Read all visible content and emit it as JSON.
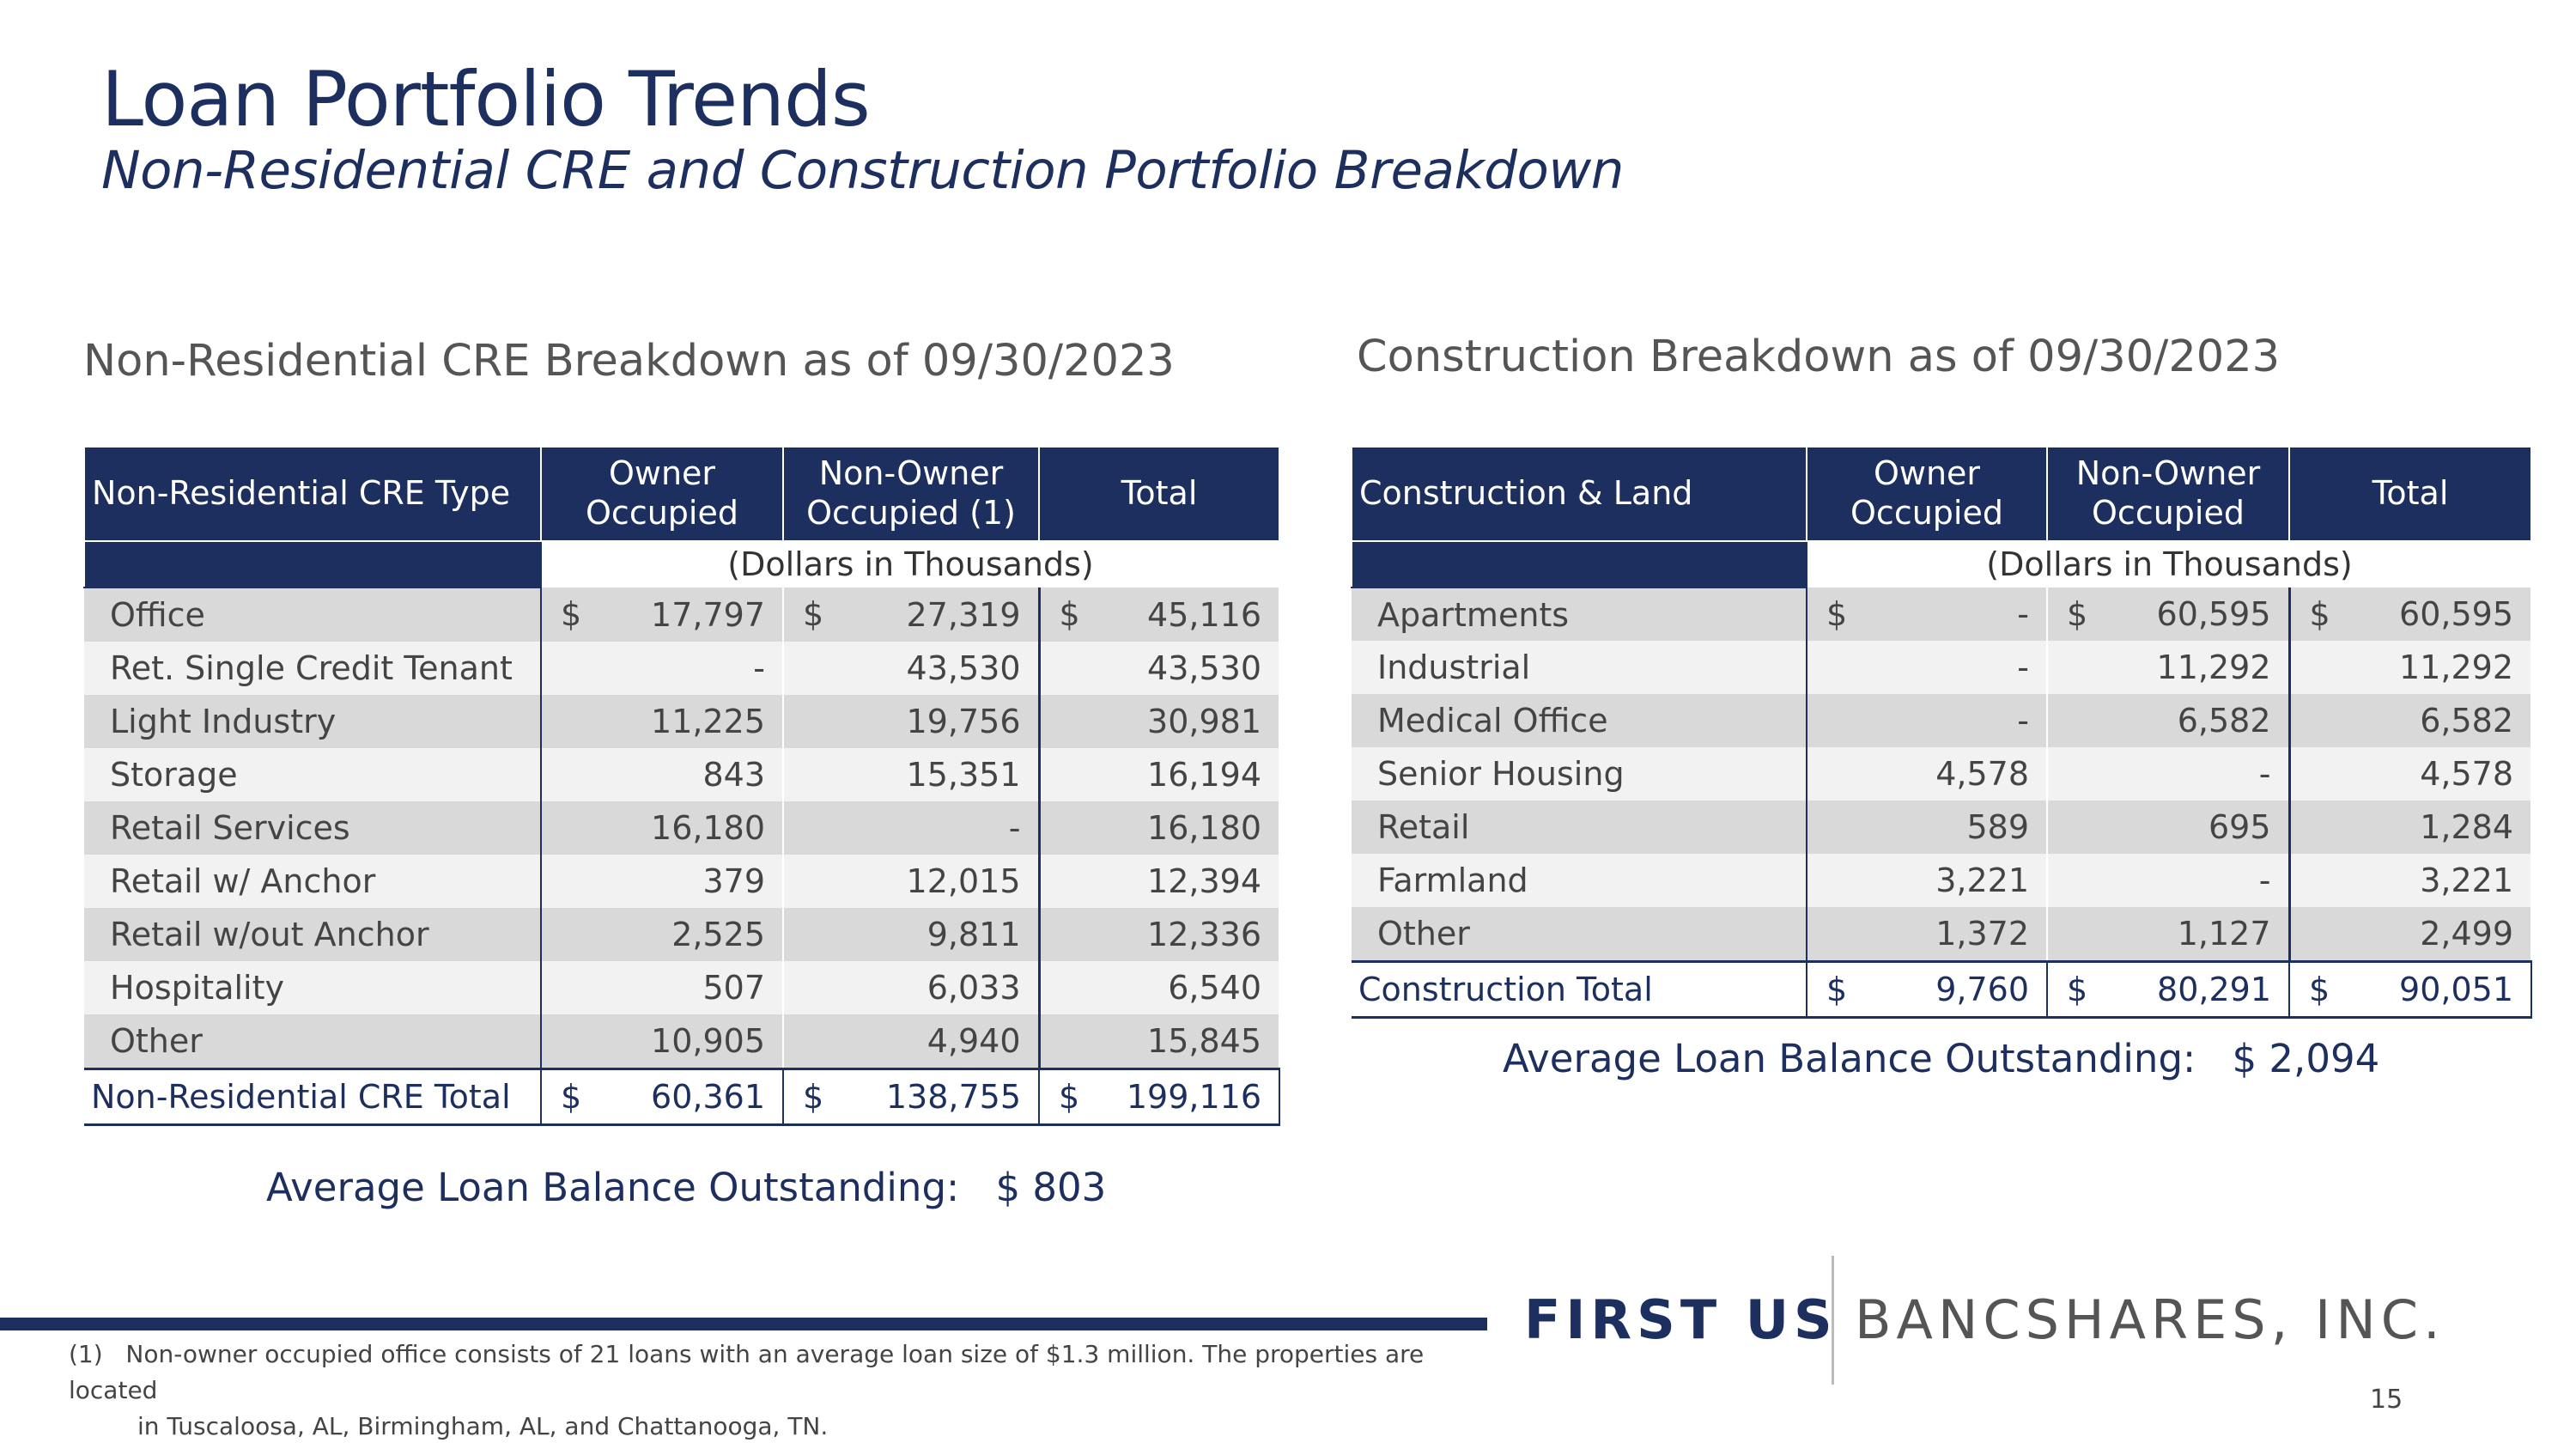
{
  "title": "Loan Portfolio Trends",
  "subtitle": "Non-Residential CRE and Construction Portfolio Breakdown",
  "cre": {
    "section_title": "Non-Residential CRE Breakdown as of 09/30/2023",
    "headers": {
      "type": "Non-Residential CRE Type",
      "owner": "Owner Occupied",
      "nonowner": "Non-Owner Occupied (1)",
      "total": "Total"
    },
    "units": "(Dollars in Thousands)",
    "rows": [
      {
        "name": "Office",
        "owner": "17,797",
        "nonowner": "27,319",
        "total": "45,116",
        "dollar": "$"
      },
      {
        "name": "Ret. Single Credit Tenant",
        "owner": "-",
        "nonowner": "43,530",
        "total": "43,530"
      },
      {
        "name": "Light Industry",
        "owner": "11,225",
        "nonowner": "19,756",
        "total": "30,981"
      },
      {
        "name": "Storage",
        "owner": "843",
        "nonowner": "15,351",
        "total": "16,194"
      },
      {
        "name": "Retail Services",
        "owner": "16,180",
        "nonowner": "-",
        "total": "16,180"
      },
      {
        "name": "Retail w/ Anchor",
        "owner": "379",
        "nonowner": "12,015",
        "total": "12,394"
      },
      {
        "name": "Retail w/out Anchor",
        "owner": "2,525",
        "nonowner": "9,811",
        "total": "12,336"
      },
      {
        "name": "Hospitality",
        "owner": "507",
        "nonowner": "6,033",
        "total": "6,540"
      },
      {
        "name": "Other",
        "owner": "10,905",
        "nonowner": "4,940",
        "total": "15,845"
      }
    ],
    "total_row": {
      "name": "Non-Residential CRE Total",
      "owner": "60,361",
      "nonowner": "138,755",
      "total": "199,116",
      "dollar": "$"
    },
    "avg_label": "Average Loan Balance Outstanding:",
    "avg_value": "$ 803"
  },
  "construction": {
    "section_title": "Construction Breakdown as of 09/30/2023",
    "headers": {
      "type": "Construction & Land",
      "owner": "Owner Occupied",
      "nonowner": "Non-Owner Occupied",
      "total": "Total"
    },
    "units": "(Dollars in Thousands)",
    "rows": [
      {
        "name": "Apartments",
        "owner": "-",
        "nonowner": "60,595",
        "total": "60,595",
        "dollar": "$"
      },
      {
        "name": "Industrial",
        "owner": "-",
        "nonowner": "11,292",
        "total": "11,292"
      },
      {
        "name": "Medical Office",
        "owner": "-",
        "nonowner": "6,582",
        "total": "6,582"
      },
      {
        "name": "Senior Housing",
        "owner": "4,578",
        "nonowner": "-",
        "total": "4,578"
      },
      {
        "name": "Retail",
        "owner": "589",
        "nonowner": "695",
        "total": "1,284"
      },
      {
        "name": "Farmland",
        "owner": "3,221",
        "nonowner": "-",
        "total": "3,221"
      },
      {
        "name": "Other",
        "owner": "1,372",
        "nonowner": "1,127",
        "total": "2,499"
      }
    ],
    "total_row": {
      "name": "Construction Total",
      "owner": "9,760",
      "nonowner": "80,291",
      "total": "90,051",
      "dollar": "$"
    },
    "avg_label": "Average Loan Balance Outstanding:",
    "avg_value": "$ 2,094"
  },
  "footnote": {
    "marker": "(1)",
    "line1": "Non-owner occupied office consists of 21 loans with an average loan size of $1.3 million. The properties are located",
    "line2": "in Tuscaloosa, AL, Birmingham, AL, and Chattanooga, TN."
  },
  "logo": {
    "part1": "FIRST US",
    "part2": "BANCSHARES, INC."
  },
  "page_number": "15"
}
